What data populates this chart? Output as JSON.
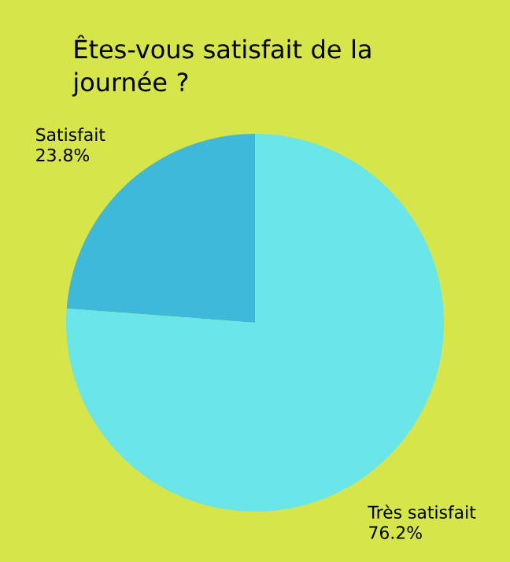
{
  "chart_data": {
    "type": "pie",
    "title": "Êtes-vous satisfait de la journée ?",
    "categories": [
      "Satisfait",
      "Très satisfait"
    ],
    "values": [
      23.8,
      76.2
    ],
    "value_labels": [
      "23.8%",
      "76.2%"
    ],
    "colors": [
      "#3fb9d9",
      "#6ae5e8"
    ]
  }
}
